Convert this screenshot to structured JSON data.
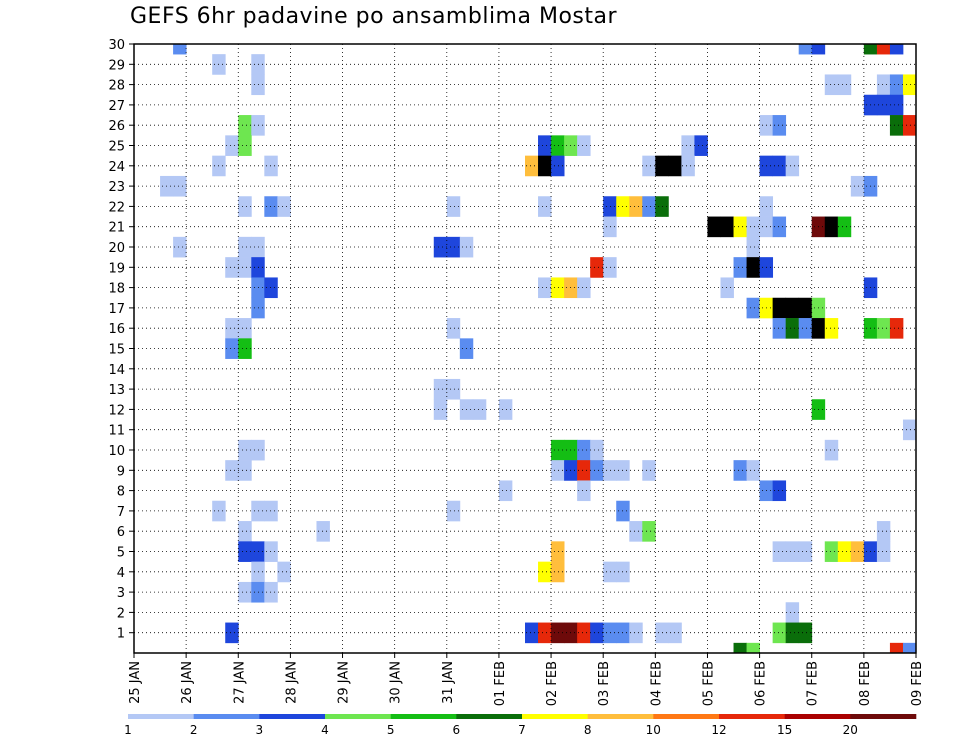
{
  "chart_data": {
    "type": "heatmap",
    "title": "GEFS 6hr padavine po ansamblima Mostar",
    "xlabel": "",
    "ylabel": "",
    "x_tick_labels": [
      "25 JAN",
      "26 JAN",
      "27 JAN",
      "28 JAN",
      "29 JAN",
      "30 JAN",
      "31 JAN",
      "01 FEB",
      "02 FEB",
      "03 FEB",
      "04 FEB",
      "05 FEB",
      "06 FEB",
      "07 FEB",
      "08 FEB",
      "09 FEB"
    ],
    "y_tick_labels": [
      "1",
      "2",
      "3",
      "4",
      "5",
      "6",
      "7",
      "8",
      "9",
      "10",
      "11",
      "12",
      "13",
      "14",
      "15",
      "16",
      "17",
      "18",
      "19",
      "20",
      "21",
      "22",
      "23",
      "24",
      "25",
      "26",
      "27",
      "28",
      "29",
      "30"
    ],
    "x_range_days": [
      0,
      15
    ],
    "time_step_days": 0.25,
    "y_range": [
      0,
      30
    ],
    "grid": true,
    "legend": {
      "placement": "bottom",
      "levels": [
        "1",
        "2",
        "3",
        "4",
        "5",
        "6",
        "7",
        "8",
        "10",
        "12",
        "15",
        "20"
      ],
      "colors": [
        "#b4c8f5",
        "#5a8cf0",
        "#1e46dc",
        "#6ee650",
        "#14be14",
        "#0a6e0a",
        "#ffff00",
        "#ffbe3c",
        "#ff7814",
        "#e6280a",
        "#aa0000",
        "#6e0a0a"
      ]
    },
    "cells": [
      [
        30,
        0.75,
        2
      ],
      [
        30,
        12.75,
        2
      ],
      [
        30,
        13,
        3
      ],
      [
        30,
        14,
        6
      ],
      [
        30,
        14.25,
        10
      ],
      [
        30,
        14.5,
        3
      ],
      [
        29,
        1.5,
        1
      ],
      [
        29,
        2.25,
        1
      ],
      [
        28,
        2.25,
        1
      ],
      [
        28,
        13.25,
        1
      ],
      [
        28,
        13.5,
        1
      ],
      [
        28,
        14.25,
        1
      ],
      [
        28,
        14.5,
        2
      ],
      [
        28,
        14.75,
        7
      ],
      [
        27,
        14,
        3
      ],
      [
        27,
        14.25,
        3
      ],
      [
        27,
        14.5,
        3
      ],
      [
        26,
        2,
        4
      ],
      [
        26,
        2.25,
        1
      ],
      [
        26,
        12,
        1
      ],
      [
        26,
        12.25,
        2
      ],
      [
        26,
        14.5,
        6
      ],
      [
        26,
        14.75,
        10
      ],
      [
        25,
        1.75,
        1
      ],
      [
        25,
        2,
        4
      ],
      [
        25,
        7.75,
        3
      ],
      [
        25,
        8,
        5
      ],
      [
        25,
        8.25,
        4
      ],
      [
        25,
        8.5,
        1
      ],
      [
        25,
        10.5,
        1
      ],
      [
        25,
        10.75,
        3
      ],
      [
        24,
        1.5,
        1
      ],
      [
        24,
        2.5,
        1
      ],
      [
        24,
        7.5,
        8
      ],
      [
        24,
        7.75,
        20
      ],
      [
        24,
        8,
        3
      ],
      [
        24,
        9.75,
        1
      ],
      [
        24,
        10,
        20
      ],
      [
        24,
        10.25,
        15
      ],
      [
        24,
        10.5,
        1
      ],
      [
        24,
        12,
        3
      ],
      [
        24,
        12.25,
        3
      ],
      [
        24,
        12.5,
        1
      ],
      [
        23,
        0.5,
        1
      ],
      [
        23,
        0.75,
        1
      ],
      [
        23,
        13.75,
        1
      ],
      [
        23,
        14,
        2
      ],
      [
        22,
        2,
        1
      ],
      [
        22,
        2.5,
        2
      ],
      [
        22,
        2.75,
        1
      ],
      [
        22,
        6,
        1
      ],
      [
        22,
        7.75,
        1
      ],
      [
        22,
        9,
        3
      ],
      [
        22,
        9.25,
        7
      ],
      [
        22,
        9.5,
        8
      ],
      [
        22,
        9.75,
        2
      ],
      [
        22,
        10,
        6
      ],
      [
        22,
        12,
        1
      ],
      [
        21,
        9,
        1
      ],
      [
        21,
        11,
        20
      ],
      [
        21,
        11.25,
        20
      ],
      [
        21,
        11.5,
        7
      ],
      [
        21,
        11.75,
        1
      ],
      [
        21,
        12,
        1
      ],
      [
        21,
        12.25,
        2
      ],
      [
        21,
        13,
        12
      ],
      [
        21,
        13.25,
        15
      ],
      [
        21,
        13.5,
        5
      ],
      [
        20,
        0.75,
        1
      ],
      [
        20,
        2,
        1
      ],
      [
        20,
        2.25,
        1
      ],
      [
        20,
        5.75,
        3
      ],
      [
        20,
        6,
        3
      ],
      [
        20,
        6.25,
        1
      ],
      [
        20,
        11.75,
        1
      ],
      [
        19,
        1.75,
        1
      ],
      [
        19,
        2,
        1
      ],
      [
        19,
        2.25,
        3
      ],
      [
        19,
        8.75,
        10
      ],
      [
        19,
        9,
        1
      ],
      [
        19,
        11.5,
        2
      ],
      [
        19,
        11.75,
        20
      ],
      [
        19,
        12,
        3
      ],
      [
        18,
        2.25,
        2
      ],
      [
        18,
        2.5,
        3
      ],
      [
        18,
        7.75,
        1
      ],
      [
        18,
        8,
        7
      ],
      [
        18,
        8.25,
        8
      ],
      [
        18,
        8.5,
        1
      ],
      [
        18,
        11.25,
        1
      ],
      [
        18,
        14,
        3
      ],
      [
        17,
        2.25,
        2
      ],
      [
        17,
        11.75,
        2
      ],
      [
        17,
        12,
        7
      ],
      [
        17,
        12.25,
        15
      ],
      [
        17,
        12.5,
        20
      ],
      [
        17,
        12.75,
        20
      ],
      [
        17,
        13,
        4
      ],
      [
        16,
        1.75,
        1
      ],
      [
        16,
        2,
        1
      ],
      [
        16,
        6,
        1
      ],
      [
        16,
        12.25,
        2
      ],
      [
        16,
        12.5,
        6
      ],
      [
        16,
        12.75,
        2
      ],
      [
        16,
        13,
        15
      ],
      [
        16,
        13.25,
        7
      ],
      [
        16,
        14,
        5
      ],
      [
        16,
        14.25,
        4
      ],
      [
        16,
        14.5,
        10
      ],
      [
        15,
        1.75,
        2
      ],
      [
        15,
        2,
        5
      ],
      [
        15,
        6.25,
        2
      ],
      [
        13,
        5.75,
        1
      ],
      [
        13,
        6,
        1
      ],
      [
        12,
        5.75,
        1
      ],
      [
        12,
        6.25,
        1
      ],
      [
        12,
        6.5,
        1
      ],
      [
        12,
        7,
        1
      ],
      [
        12,
        13,
        5
      ],
      [
        11,
        14.75,
        1
      ],
      [
        10,
        2,
        1
      ],
      [
        10,
        2.25,
        1
      ],
      [
        10,
        8,
        5
      ],
      [
        10,
        8.25,
        5
      ],
      [
        10,
        8.5,
        2
      ],
      [
        10,
        8.75,
        1
      ],
      [
        10,
        13.25,
        1
      ],
      [
        9,
        1.75,
        1
      ],
      [
        9,
        2,
        1
      ],
      [
        9,
        8,
        1
      ],
      [
        9,
        8.25,
        3
      ],
      [
        9,
        8.5,
        10
      ],
      [
        9,
        8.75,
        2
      ],
      [
        9,
        9,
        1
      ],
      [
        9,
        9.25,
        1
      ],
      [
        9,
        9.75,
        1
      ],
      [
        9,
        11.5,
        2
      ],
      [
        9,
        11.75,
        1
      ],
      [
        8,
        7,
        1
      ],
      [
        8,
        8.5,
        1
      ],
      [
        8,
        12,
        2
      ],
      [
        8,
        12.25,
        3
      ],
      [
        7,
        1.5,
        1
      ],
      [
        7,
        2.25,
        1
      ],
      [
        7,
        2.5,
        1
      ],
      [
        7,
        6,
        1
      ],
      [
        7,
        9.25,
        2
      ],
      [
        6,
        2,
        1
      ],
      [
        6,
        3.5,
        1
      ],
      [
        6,
        9.5,
        1
      ],
      [
        6,
        9.75,
        4
      ],
      [
        6,
        14.25,
        1
      ],
      [
        5,
        2,
        3
      ],
      [
        5,
        2.25,
        3
      ],
      [
        5,
        2.5,
        1
      ],
      [
        5,
        8,
        8
      ],
      [
        5,
        12.25,
        1
      ],
      [
        5,
        12.5,
        1
      ],
      [
        5,
        12.75,
        1
      ],
      [
        5,
        13.25,
        4
      ],
      [
        5,
        13.5,
        7
      ],
      [
        5,
        13.75,
        8
      ],
      [
        5,
        14,
        3
      ],
      [
        5,
        14.25,
        1
      ],
      [
        4,
        2.25,
        1
      ],
      [
        4,
        2.75,
        1
      ],
      [
        4,
        7.75,
        7
      ],
      [
        4,
        8,
        8
      ],
      [
        4,
        9,
        1
      ],
      [
        4,
        9.25,
        1
      ],
      [
        3,
        2,
        1
      ],
      [
        3,
        2.25,
        2
      ],
      [
        3,
        2.5,
        1
      ],
      [
        2,
        12.5,
        1
      ],
      [
        1,
        1.75,
        3
      ],
      [
        1,
        7.5,
        3
      ],
      [
        1,
        7.75,
        10
      ],
      [
        1,
        8,
        12
      ],
      [
        1,
        8.25,
        12
      ],
      [
        1,
        8.5,
        10
      ],
      [
        1,
        8.75,
        3
      ],
      [
        1,
        9,
        2
      ],
      [
        1,
        9.25,
        2
      ],
      [
        1,
        9.5,
        1
      ],
      [
        1,
        10,
        1
      ],
      [
        1,
        10.25,
        1
      ],
      [
        1,
        12.25,
        4
      ],
      [
        1,
        12.5,
        6
      ],
      [
        1,
        12.75,
        6
      ],
      [
        0,
        11.5,
        6
      ],
      [
        0,
        11.75,
        4
      ],
      [
        0,
        14.5,
        10
      ],
      [
        0,
        14.75,
        2
      ]
    ]
  }
}
